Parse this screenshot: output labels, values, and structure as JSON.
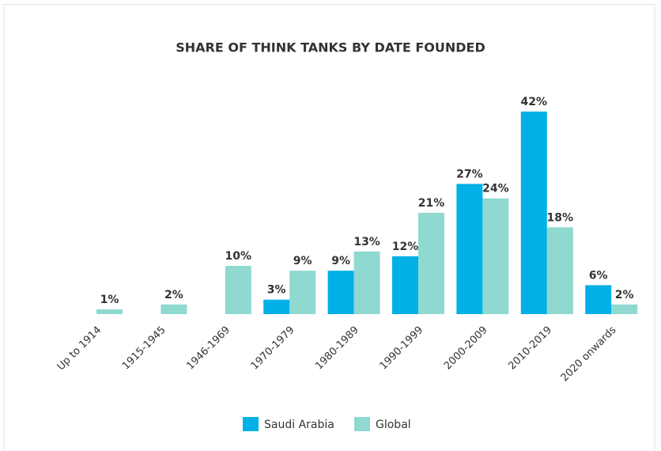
{
  "chart_data": {
    "type": "bar",
    "title": "SHARE OF THINK TANKS BY DATE FOUNDED",
    "categories": [
      "Up to 1914",
      "1915-1945",
      "1946-1969",
      "1970-1979",
      "1980-1989",
      "1990-1999",
      "2000-2009",
      "2010-2019",
      "2020 onwards"
    ],
    "series": [
      {
        "name": "Saudi Arabia",
        "color": "#00b0e6",
        "values": [
          null,
          null,
          null,
          3,
          9,
          12,
          27,
          42,
          6
        ],
        "value_labels": [
          null,
          null,
          null,
          "3%",
          "9%",
          "12%",
          "27%",
          "42%",
          "6%"
        ]
      },
      {
        "name": "Global",
        "color": "#8fd9d0",
        "values": [
          1,
          2,
          10,
          9,
          13,
          21,
          24,
          18,
          2
        ],
        "value_labels": [
          "1%",
          "2%",
          "10%",
          "9%",
          "13%",
          "21%",
          "24%",
          "18%",
          "2%"
        ]
      }
    ],
    "legend": "bottom"
  }
}
